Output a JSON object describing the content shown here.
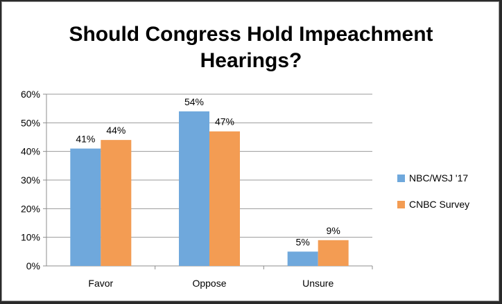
{
  "chart_data": {
    "type": "bar",
    "title_lines": [
      "Should Congress Hold Impeachment",
      "Hearings?"
    ],
    "categories": [
      "Favor",
      "Oppose",
      "Unsure"
    ],
    "series": [
      {
        "name": "NBC/WSJ '17",
        "values": [
          41,
          54,
          5
        ],
        "labels": [
          "41%",
          "54%",
          "5%"
        ],
        "color": "#6fa8dc"
      },
      {
        "name": "CNBC Survey",
        "values": [
          44,
          47,
          9
        ],
        "labels": [
          "44%",
          "47%",
          "9%"
        ],
        "color": "#f39c53"
      }
    ],
    "ylim": [
      0,
      60
    ],
    "yticks": [
      0,
      10,
      20,
      30,
      40,
      50,
      60
    ],
    "ytick_labels": [
      "0%",
      "10%",
      "20%",
      "30%",
      "40%",
      "50%",
      "60%"
    ],
    "grid": true,
    "legend_position": "right"
  }
}
